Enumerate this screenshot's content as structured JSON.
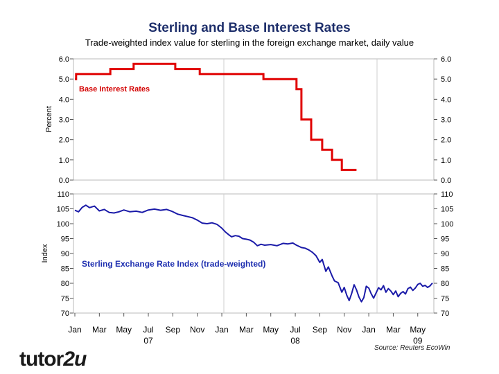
{
  "title": "Sterling and Base Interest Rates",
  "subtitle": "Trade-weighted index value for sterling in the foreign exchange market, daily value",
  "source": "Source: Reuters EcoWin",
  "logo": {
    "text_a": "tutor",
    "text_b": "2u"
  },
  "colors": {
    "rate_line": "#e00000",
    "index_line": "#1a1aa8",
    "rate_label": "#d40000",
    "index_label": "#1e2fb0",
    "title": "#1e2f6b"
  },
  "chart_data": [
    {
      "type": "line",
      "name": "rates",
      "ylabel": "Percent",
      "ylim": [
        0,
        6
      ],
      "yticks": [
        "0.0",
        "1.0",
        "2.0",
        "3.0",
        "4.0",
        "5.0",
        "6.0"
      ],
      "series": [
        {
          "name": "Base Interest Rates",
          "step": true,
          "points": [
            [
              0,
              5.0
            ],
            [
              0.1,
              5.25
            ],
            [
              2.1,
              5.25
            ],
            [
              2.9,
              5.5
            ],
            [
              4.8,
              5.75
            ],
            [
              7.4,
              5.75
            ],
            [
              8.2,
              5.5
            ],
            [
              10.2,
              5.25
            ],
            [
              11.7,
              5.25
            ],
            [
              13.0,
              5.25
            ],
            [
              15.4,
              5.0
            ],
            [
              16.3,
              5.0
            ],
            [
              17.2,
              5.0
            ],
            [
              18.1,
              4.5
            ],
            [
              18.5,
              3.0
            ],
            [
              18.9,
              3.0
            ],
            [
              19.3,
              2.0
            ],
            [
              19.9,
              2.0
            ],
            [
              20.2,
              1.5
            ],
            [
              21.0,
              1.0
            ],
            [
              21.5,
              1.0
            ],
            [
              21.8,
              0.5
            ],
            [
              23.0,
              0.5
            ]
          ]
        }
      ]
    },
    {
      "type": "line",
      "name": "index",
      "ylabel": "Index",
      "ylim": [
        70,
        110
      ],
      "yticks": [
        "70",
        "75",
        "80",
        "85",
        "90",
        "95",
        "100",
        "105",
        "110"
      ],
      "series": [
        {
          "name": "Sterling Exchange Rate Index (trade-weighted)",
          "points": [
            [
              0,
              104.5
            ],
            [
              0.3,
              104.0
            ],
            [
              0.6,
              105.5
            ],
            [
              0.9,
              106.2
            ],
            [
              1.2,
              105.4
            ],
            [
              1.6,
              105.9
            ],
            [
              2.0,
              104.3
            ],
            [
              2.4,
              104.8
            ],
            [
              2.8,
              103.8
            ],
            [
              3.2,
              103.6
            ],
            [
              3.6,
              104.0
            ],
            [
              4.0,
              104.6
            ],
            [
              4.5,
              104.0
            ],
            [
              5.0,
              104.2
            ],
            [
              5.5,
              103.8
            ],
            [
              6.0,
              104.6
            ],
            [
              6.5,
              104.9
            ],
            [
              7.0,
              104.5
            ],
            [
              7.5,
              104.8
            ],
            [
              7.9,
              104.2
            ],
            [
              8.4,
              103.2
            ],
            [
              8.8,
              102.8
            ],
            [
              9.2,
              102.4
            ],
            [
              9.6,
              102.0
            ],
            [
              10.0,
              101.2
            ],
            [
              10.4,
              100.2
            ],
            [
              10.8,
              100.0
            ],
            [
              11.2,
              100.3
            ],
            [
              11.6,
              99.8
            ],
            [
              12.0,
              98.5
            ],
            [
              12.3,
              97.2
            ],
            [
              12.6,
              96.2
            ],
            [
              12.8,
              95.6
            ],
            [
              13.1,
              96.0
            ],
            [
              13.4,
              95.8
            ],
            [
              13.7,
              95.0
            ],
            [
              14.0,
              94.8
            ],
            [
              14.3,
              94.5
            ],
            [
              14.6,
              93.8
            ],
            [
              14.9,
              92.6
            ],
            [
              15.2,
              93.1
            ],
            [
              15.5,
              92.8
            ],
            [
              16.0,
              93.0
            ],
            [
              16.5,
              92.6
            ],
            [
              17.0,
              93.4
            ],
            [
              17.4,
              93.2
            ],
            [
              17.8,
              93.5
            ],
            [
              18.1,
              92.8
            ],
            [
              18.5,
              92.0
            ],
            [
              18.8,
              91.8
            ],
            [
              19.1,
              91.2
            ],
            [
              19.4,
              90.4
            ],
            [
              19.7,
              89.2
            ],
            [
              20.0,
              87.0
            ],
            [
              20.2,
              88.0
            ],
            [
              20.5,
              84.0
            ],
            [
              20.7,
              85.5
            ],
            [
              21.0,
              82.5
            ],
            [
              21.2,
              80.8
            ],
            [
              21.5,
              80.2
            ],
            [
              21.8,
              77.0
            ],
            [
              22.0,
              78.6
            ],
            [
              22.2,
              76.0
            ],
            [
              22.4,
              74.2
            ],
            [
              22.6,
              76.5
            ],
            [
              22.8,
              79.5
            ],
            [
              23.0,
              77.8
            ],
            [
              23.2,
              75.4
            ],
            [
              23.4,
              73.8
            ],
            [
              23.6,
              75.2
            ],
            [
              23.8,
              79.0
            ],
            [
              24.0,
              78.4
            ],
            [
              24.2,
              76.5
            ],
            [
              24.4,
              75.0
            ],
            [
              24.6,
              76.8
            ],
            [
              24.8,
              78.5
            ],
            [
              25.0,
              77.8
            ],
            [
              25.2,
              79.2
            ],
            [
              25.4,
              77.0
            ],
            [
              25.6,
              78.2
            ],
            [
              25.8,
              77.4
            ],
            [
              26.0,
              76.2
            ],
            [
              26.2,
              77.4
            ],
            [
              26.4,
              75.5
            ],
            [
              26.6,
              76.6
            ],
            [
              26.8,
              77.2
            ],
            [
              27.0,
              76.4
            ],
            [
              27.2,
              78.2
            ],
            [
              27.4,
              78.7
            ],
            [
              27.6,
              77.6
            ],
            [
              27.8,
              78.4
            ],
            [
              28.0,
              79.6
            ],
            [
              28.2,
              80.0
            ],
            [
              28.4,
              79.0
            ],
            [
              28.6,
              79.3
            ],
            [
              28.8,
              78.6
            ],
            [
              29.0,
              79.1
            ],
            [
              29.2,
              80.1
            ]
          ]
        }
      ]
    }
  ],
  "x_axis": {
    "months": [
      "Jan",
      "Mar",
      "May",
      "Jul",
      "Sep",
      "Nov",
      "Jan",
      "Mar",
      "May",
      "Jul",
      "Sep",
      "Nov",
      "Jan",
      "Mar",
      "May"
    ],
    "years": [
      "07",
      "08",
      "09"
    ]
  },
  "annotations": {
    "rate_label": "Base Interest Rates",
    "index_label": "Sterling Exchange Rate Index (trade-weighted)"
  }
}
